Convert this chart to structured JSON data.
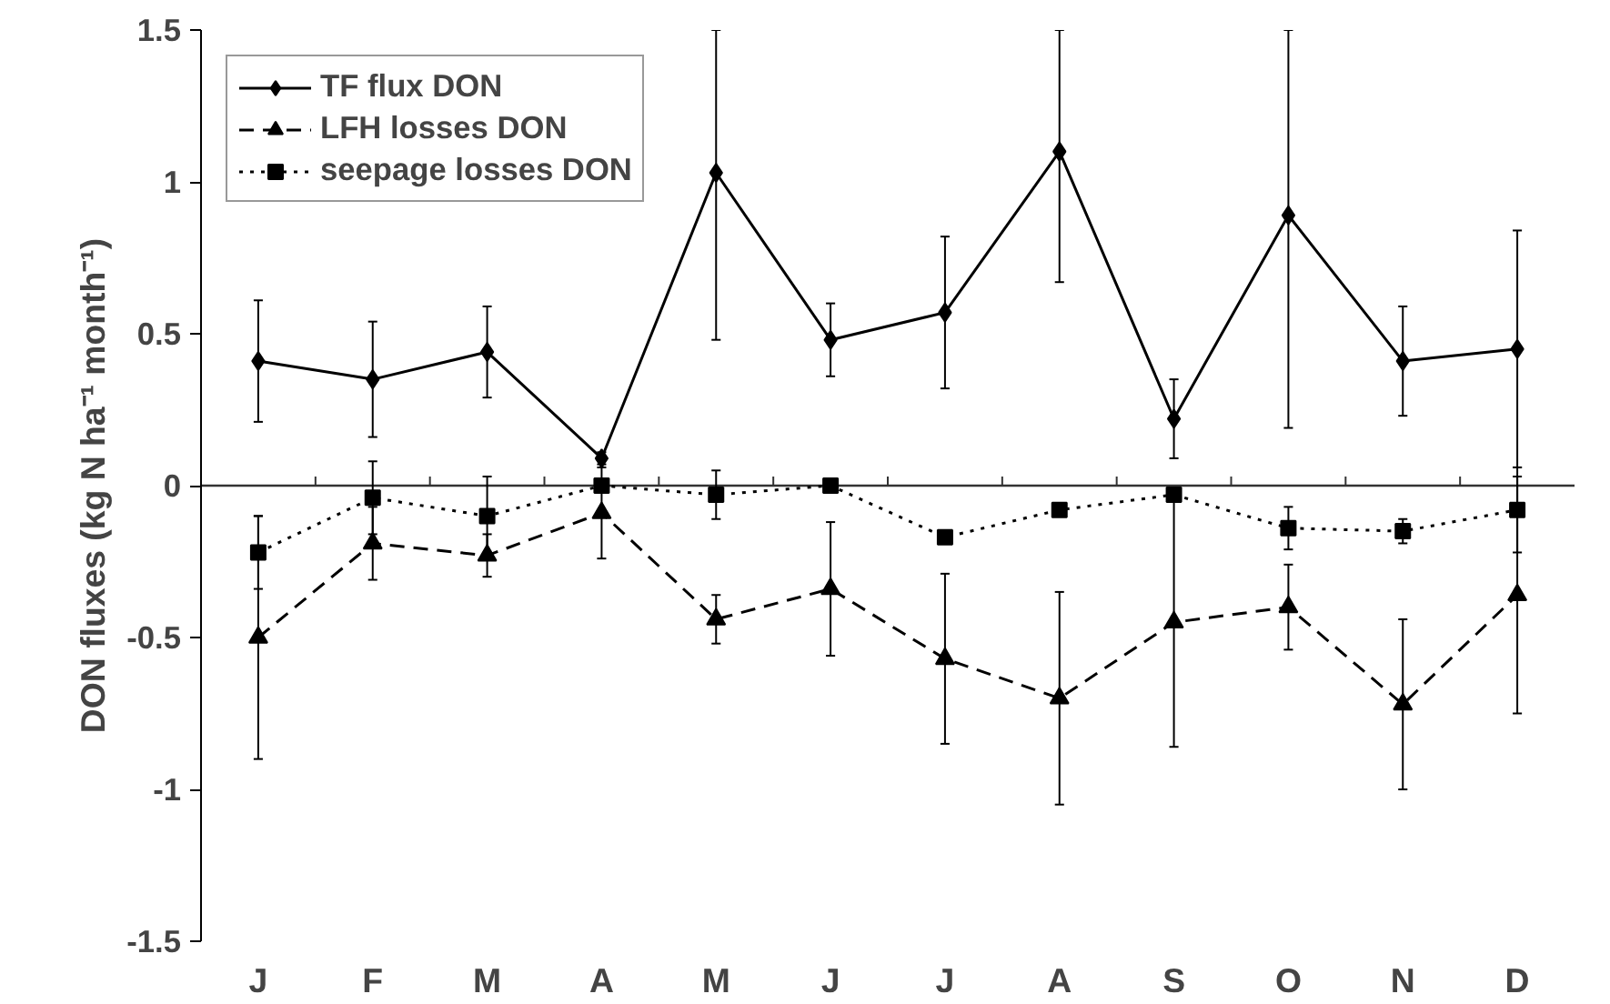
{
  "chart_data": {
    "type": "line",
    "ylabel": "DON fluxes (kg N ha⁻¹ month⁻¹)",
    "categories": [
      "J",
      "F",
      "M",
      "A",
      "M",
      "J",
      "J",
      "A",
      "S",
      "O",
      "N",
      "D"
    ],
    "ylim": [
      -1.5,
      1.5
    ],
    "yticks": [
      {
        "value": -1.5,
        "label": "-1.5"
      },
      {
        "value": -1,
        "label": "-1"
      },
      {
        "value": -0.5,
        "label": "-0.5"
      },
      0,
      0.5,
      1,
      1.5
    ],
    "grid": false,
    "legend": "top left",
    "ref_lines": [
      {
        "axis": "y",
        "value": 0
      }
    ],
    "series": [
      {
        "name": "TF flux DON",
        "color": "#000000",
        "marker": "diamond",
        "line_style": "solid",
        "values": [
          0.41,
          0.35,
          0.44,
          0.09,
          1.03,
          0.48,
          0.57,
          1.1,
          0.22,
          0.89,
          0.41,
          0.45
        ],
        "errors": [
          0.2,
          0.19,
          0.15,
          0.02,
          [
            0.48,
            1.5
          ],
          0.12,
          0.25,
          [
            0.67,
            1.5
          ],
          0.13,
          [
            0.19,
            1.5
          ],
          0.18,
          0.39
        ]
      },
      {
        "name": "LFH losses DON",
        "color": "#000000",
        "marker": "triangle",
        "line_style": "dashed",
        "values": [
          -0.5,
          -0.19,
          -0.23,
          -0.09,
          -0.44,
          -0.34,
          -0.57,
          -0.7,
          -0.45,
          -0.4,
          -0.72,
          -0.36
        ],
        "errors": [
          0.4,
          0.12,
          0.07,
          0.15,
          0.08,
          0.22,
          0.28,
          0.35,
          0.41,
          0.14,
          0.28,
          0.39
        ]
      },
      {
        "name": "seepage losses DON",
        "color": "#000000",
        "marker": "square",
        "line_style": "dotted",
        "values": [
          -0.22,
          -0.04,
          -0.1,
          0.0,
          -0.03,
          0.0,
          -0.17,
          -0.08,
          -0.03,
          -0.14,
          -0.15,
          -0.08
        ],
        "errors": [
          0.12,
          0.12,
          0.13,
          null,
          0.08,
          null,
          null,
          null,
          null,
          0.07,
          0.04,
          0.14
        ]
      }
    ]
  }
}
